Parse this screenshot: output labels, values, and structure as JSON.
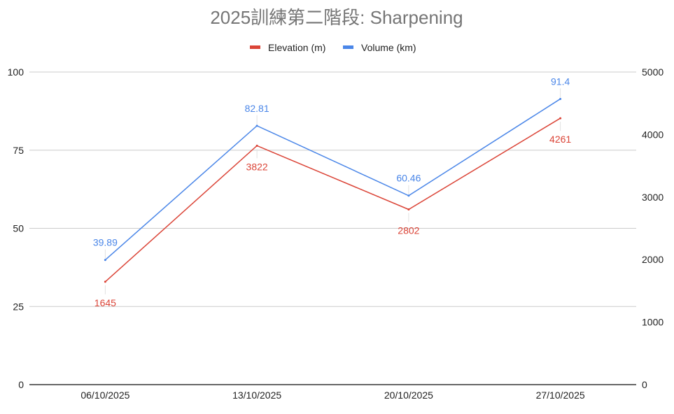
{
  "chart_data": {
    "type": "line",
    "title": "2025訓練第二階段: Sharpening",
    "categories": [
      "06/10/2025",
      "13/10/2025",
      "20/10/2025",
      "27/10/2025"
    ],
    "series": [
      {
        "name": "Elevation (m)",
        "axis": "right",
        "color": "#db4437",
        "values": [
          1645,
          3822,
          2802,
          4261
        ],
        "labels": [
          "1645",
          "3822",
          "2802",
          "4261"
        ],
        "label_position": "below"
      },
      {
        "name": "Volume (km)",
        "axis": "left",
        "color": "#4a86e8",
        "values": [
          39.89,
          82.81,
          60.46,
          91.4
        ],
        "labels": [
          "39.89",
          "82.81",
          "60.46",
          "91.4"
        ],
        "label_position": "above"
      }
    ],
    "left_axis": {
      "min": 0,
      "max": 100,
      "ticks": [
        "0",
        "25",
        "50",
        "75",
        "100"
      ]
    },
    "right_axis": {
      "min": 0,
      "max": 5000,
      "ticks": [
        "0",
        "1000",
        "2000",
        "3000",
        "4000",
        "5000"
      ]
    },
    "legend_position": "top",
    "grid": true
  }
}
